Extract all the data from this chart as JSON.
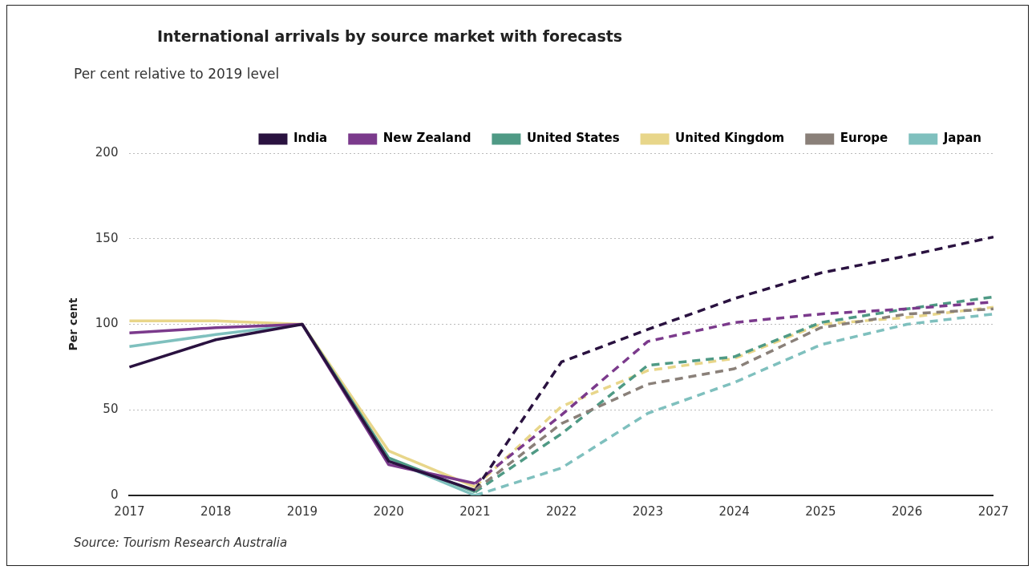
{
  "chart_data": {
    "type": "line",
    "title": "International arrivals by source market with forecasts",
    "subtitle": "Per cent relative to 2019 level",
    "ylabel": "Per cent",
    "categories": [
      "2017",
      "2018",
      "2019",
      "2020",
      "2021",
      "2022",
      "2023",
      "2024",
      "2025",
      "2026",
      "2027"
    ],
    "series": [
      {
        "name": "India",
        "color": "#2a1240",
        "line_style": "solid",
        "values": [
          75,
          91,
          100,
          20,
          3,
          null,
          null,
          null,
          null,
          null,
          null
        ]
      },
      {
        "name": "New Zealand",
        "color": "#7b3a8c",
        "line_style": "solid",
        "values": [
          95,
          98,
          100,
          18,
          7,
          null,
          null,
          null,
          null,
          null,
          null
        ]
      },
      {
        "name": "United States",
        "color": "#4f9a85",
        "line_style": "solid",
        "values": [
          null,
          null,
          100,
          22,
          2,
          null,
          null,
          null,
          null,
          null,
          null
        ]
      },
      {
        "name": "United Kingdom",
        "color": "#e8d68a",
        "line_style": "solid",
        "values": [
          102,
          102,
          100,
          26,
          5,
          null,
          null,
          null,
          null,
          null,
          null
        ]
      },
      {
        "name": "Europe",
        "color": "#8a8079",
        "line_style": "dashed",
        "values": [
          null,
          null,
          null,
          null,
          3,
          42,
          65,
          74,
          98,
          106,
          109
        ]
      },
      {
        "name": "Japan",
        "color": "#7fc0be",
        "line_style": "solid",
        "values": [
          87,
          94,
          100,
          21,
          0,
          null,
          null,
          null,
          null,
          null,
          null
        ]
      },
      {
        "color": "#2a1240",
        "line_style": "dashed",
        "values": [
          null,
          null,
          null,
          null,
          3,
          78,
          97,
          115,
          130,
          140,
          151
        ]
      },
      {
        "color": "#7b3a8c",
        "line_style": "dashed",
        "values": [
          null,
          null,
          null,
          null,
          7,
          47,
          90,
          101,
          106,
          109,
          113
        ]
      },
      {
        "color": "#4f9a85",
        "line_style": "dashed",
        "values": [
          null,
          null,
          null,
          null,
          2,
          36,
          76,
          81,
          101,
          109,
          116
        ]
      },
      {
        "color": "#e8d68a",
        "line_style": "dashed",
        "values": [
          null,
          null,
          null,
          null,
          5,
          52,
          73,
          80,
          100,
          104,
          110
        ]
      },
      {
        "color": "#7fc0be",
        "line_style": "dashed",
        "values": [
          null,
          null,
          null,
          null,
          0,
          16,
          48,
          66,
          88,
          100,
          106
        ]
      }
    ],
    "ylim": [
      0,
      200
    ],
    "yticks": [
      0,
      50,
      100,
      150,
      200
    ],
    "grid": "y",
    "legend": "top",
    "marker": "none",
    "annotations": [
      "Source: Tourism Research Australia"
    ]
  }
}
